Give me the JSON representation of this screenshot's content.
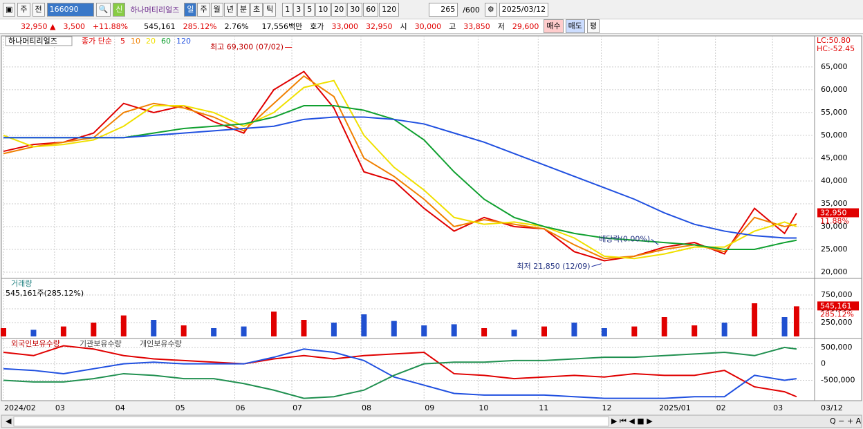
{
  "toolbar": {
    "market": "주",
    "prev": "전",
    "code": "166090",
    "badge": "신",
    "name": "하나머티리얼즈",
    "periods": [
      "일",
      "주",
      "월",
      "년",
      "분",
      "초",
      "틱"
    ],
    "intervals": [
      "1",
      "3",
      "5",
      "10",
      "20",
      "30",
      "60",
      "120"
    ],
    "count": "265",
    "max": "/600",
    "date": "2025/03/12"
  },
  "info_bar": {
    "price": "32,950 ▲",
    "change": "3,500",
    "change_pct": "+11.88%",
    "volume": "545,161",
    "volume_ratio": "285.12%",
    "turnover": "2.76%",
    "amount": "17,556백만",
    "quote_label": "호가",
    "ask": "33,000",
    "bid": "32,950",
    "open_label": "시",
    "open": "30,000",
    "high_label": "고",
    "high": "33,850",
    "low_label": "저",
    "low": "29,600",
    "buy": "매수",
    "sell": "매도",
    "avg": "평"
  },
  "chart_data": [
    {
      "type": "line",
      "title": "하나머티리얼즈",
      "legend_prefix": "종가 단순",
      "right_labels": [
        "LC:50.80",
        "HC:-52.45"
      ],
      "x": [
        0,
        10,
        20,
        30,
        40,
        50,
        60,
        70,
        80,
        90,
        100,
        110,
        120,
        130,
        140,
        150,
        160,
        170,
        180,
        190,
        200,
        210,
        220,
        230,
        240,
        250,
        260,
        264
      ],
      "xlim": [
        0,
        270
      ],
      "ylim": [
        20000,
        71800
      ],
      "yticks": [
        {
          "value": 20000,
          "label": "20,000"
        },
        {
          "value": 25000,
          "label": "25,000"
        },
        {
          "value": 30000,
          "label": "30,000"
        },
        {
          "value": 35000,
          "label": "35,000"
        },
        {
          "value": 40000,
          "label": "40,000"
        },
        {
          "value": 45000,
          "label": "45,000"
        },
        {
          "value": 50000,
          "label": "50,000"
        },
        {
          "value": 55000,
          "label": "55,000"
        },
        {
          "value": 60000,
          "label": "60,000"
        },
        {
          "value": 65000,
          "label": "65,000"
        }
      ],
      "series": [
        {
          "name": "5",
          "color": "#e00000",
          "values": [
            46500,
            48000,
            48500,
            50500,
            57000,
            55000,
            56500,
            53000,
            50500,
            60000,
            64000,
            56000,
            42000,
            40000,
            34000,
            29000,
            32000,
            30000,
            29500,
            24500,
            22500,
            23500,
            25500,
            26500,
            24000,
            34000,
            28500,
            32950
          ]
        },
        {
          "name": "10",
          "color": "#f08000",
          "values": [
            46000,
            47500,
            48500,
            49500,
            55000,
            57000,
            56000,
            54000,
            51000,
            57000,
            63000,
            58500,
            45000,
            41000,
            36000,
            30000,
            31500,
            30500,
            29500,
            26000,
            23000,
            23500,
            25000,
            26000,
            24500,
            32000,
            30000,
            30500
          ]
        },
        {
          "name": "20",
          "color": "#f0e000",
          "values": [
            50000,
            47500,
            48000,
            49000,
            52000,
            56500,
            56500,
            55000,
            52000,
            55000,
            60500,
            62000,
            50000,
            43000,
            38000,
            32000,
            30500,
            31000,
            30000,
            27500,
            23500,
            23000,
            24000,
            25500,
            25500,
            29000,
            31000,
            30000
          ]
        },
        {
          "name": "60",
          "color": "#10a030",
          "values": [
            49500,
            49500,
            49500,
            49500,
            49500,
            50500,
            51500,
            52000,
            52500,
            54000,
            56500,
            56500,
            55500,
            53500,
            49000,
            42000,
            36000,
            32000,
            30000,
            28500,
            27500,
            27000,
            26500,
            26000,
            25000,
            25000,
            26500,
            27000
          ]
        },
        {
          "name": "120",
          "color": "#2050e0",
          "values": [
            49500,
            49500,
            49500,
            49500,
            49500,
            50000,
            50500,
            51000,
            51500,
            52000,
            53500,
            54000,
            54000,
            53500,
            52500,
            50500,
            48500,
            46000,
            43500,
            41000,
            38500,
            36000,
            33000,
            30500,
            29000,
            28000,
            27500,
            27500
          ]
        }
      ],
      "annotations": [
        {
          "text": "최고 69,300 (07/02)",
          "x": 96,
          "y": 69300
        },
        {
          "text": "최저 21,850 (12/09)",
          "x": 199,
          "y": 21850
        },
        {
          "text": "배당락(0.00%)",
          "x": 218,
          "y": 26000
        }
      ],
      "last": {
        "value": 32950,
        "label": "32,950",
        "change": "11.88%"
      },
      "grid": true
    },
    {
      "type": "bar",
      "title": "거래량",
      "subtitle": "545,161주(285.12%)",
      "x": [
        0,
        10,
        20,
        30,
        40,
        50,
        60,
        70,
        80,
        90,
        100,
        110,
        120,
        130,
        140,
        150,
        160,
        170,
        180,
        190,
        200,
        210,
        220,
        230,
        240,
        250,
        260,
        264
      ],
      "xlim": [
        0,
        270
      ],
      "ylim": [
        0,
        1000000
      ],
      "yticks": [
        {
          "value": 250000,
          "label": "250,000"
        },
        {
          "value": 500000,
          "label": "500,000"
        },
        {
          "value": 750000,
          "label": "750,000"
        }
      ],
      "values": [
        150000,
        120000,
        180000,
        250000,
        380000,
        300000,
        200000,
        150000,
        180000,
        450000,
        300000,
        250000,
        400000,
        280000,
        200000,
        220000,
        150000,
        120000,
        180000,
        250000,
        150000,
        180000,
        350000,
        200000,
        250000,
        600000,
        350000,
        545161
      ],
      "bar_colors": [
        "#e00000",
        "#2050d0",
        "#e00000",
        "#e00000",
        "#e00000",
        "#2050d0",
        "#e00000",
        "#2050d0",
        "#2050d0",
        "#e00000",
        "#e00000",
        "#2050d0",
        "#2050d0",
        "#2050d0",
        "#2050d0",
        "#2050d0",
        "#e00000",
        "#2050d0",
        "#e00000",
        "#2050d0",
        "#2050d0",
        "#e00000",
        "#e00000",
        "#e00000",
        "#2050d0",
        "#e00000",
        "#2050d0",
        "#e00000"
      ],
      "last": {
        "value": 545161,
        "label": "545,161",
        "change": "285.12%"
      },
      "grid": true
    },
    {
      "type": "line",
      "x": [
        0,
        10,
        20,
        30,
        40,
        50,
        60,
        70,
        80,
        90,
        100,
        110,
        120,
        130,
        140,
        150,
        160,
        170,
        180,
        190,
        200,
        210,
        220,
        230,
        240,
        250,
        260,
        264
      ],
      "xlim": [
        0,
        270
      ],
      "ylim": [
        -1100000,
        750000
      ],
      "yticks": [
        {
          "value": -500000,
          "label": "-500,000"
        },
        0,
        {
          "value": 500000,
          "label": "500,000"
        }
      ],
      "xticks": [
        {
          "value": 0,
          "label": "2024/02"
        },
        {
          "value": 17,
          "label": "03"
        },
        {
          "value": 37,
          "label": "04"
        },
        {
          "value": 57,
          "label": "05"
        },
        {
          "value": 77,
          "label": "06"
        },
        {
          "value": 96,
          "label": "07"
        },
        {
          "value": 119,
          "label": "08"
        },
        {
          "value": 140,
          "label": "09"
        },
        {
          "value": 158,
          "label": "10"
        },
        {
          "value": 178,
          "label": "11"
        },
        {
          "value": 199,
          "label": "12"
        },
        {
          "value": 218,
          "label": "2025/01"
        },
        {
          "value": 237,
          "label": "02"
        },
        {
          "value": 256,
          "label": "03"
        }
      ],
      "x_end_label": "03/12",
      "series": [
        {
          "name": "외국인보유수량",
          "color": "#e00000",
          "values": [
            350000,
            250000,
            550000,
            450000,
            250000,
            150000,
            100000,
            50000,
            0,
            150000,
            250000,
            150000,
            250000,
            300000,
            350000,
            -300000,
            -350000,
            -450000,
            -400000,
            -350000,
            -400000,
            -300000,
            -350000,
            -350000,
            -200000,
            -700000,
            -850000,
            -1000000
          ]
        },
        {
          "name": "기관보유수량",
          "color": "#2050e0",
          "values": [
            -150000,
            -200000,
            -300000,
            -150000,
            0,
            50000,
            0,
            0,
            0,
            200000,
            450000,
            350000,
            100000,
            -400000,
            -650000,
            -900000,
            -950000,
            -950000,
            -950000,
            -1000000,
            -1050000,
            -1050000,
            -1050000,
            -1000000,
            -1000000,
            -350000,
            -500000,
            -450000
          ]
        },
        {
          "name": "개인보유수량",
          "color": "#209050",
          "values": [
            -500000,
            -550000,
            -550000,
            -450000,
            -300000,
            -350000,
            -450000,
            -450000,
            -600000,
            -800000,
            -1050000,
            -1000000,
            -800000,
            -350000,
            0,
            50000,
            50000,
            100000,
            100000,
            150000,
            200000,
            200000,
            250000,
            300000,
            350000,
            250000,
            500000,
            450000
          ]
        }
      ],
      "grid": true
    }
  ]
}
